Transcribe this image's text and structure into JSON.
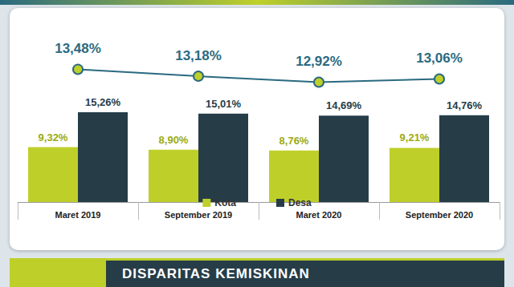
{
  "chart_data": {
    "type": "bar",
    "title": "DISPARITAS KEMISKINAN",
    "categories": [
      "Maret 2019",
      "September 2019",
      "Maret 2020",
      "September 2020"
    ],
    "series": [
      {
        "name": "Kota",
        "type": "bar",
        "color": "#bfcf2a",
        "values": [
          9.32,
          8.9,
          8.76,
          9.21
        ],
        "value_labels": [
          "9,32%",
          "8,90%",
          "8,76%",
          "9,21%"
        ]
      },
      {
        "name": "Desa",
        "type": "bar",
        "color": "#263d48",
        "values": [
          15.26,
          15.01,
          14.69,
          14.76
        ],
        "value_labels": [
          "15,26%",
          "15,01%",
          "14,69%",
          "14,76%"
        ]
      },
      {
        "type": "line",
        "axis": "y2",
        "color": "#2a6a80",
        "marker": "circle",
        "values": [
          13.48,
          13.18,
          12.92,
          13.06
        ],
        "value_labels": [
          "13,48%",
          "13,18%",
          "12,92%",
          "13,06%"
        ]
      }
    ],
    "ylim": [
      0,
      31.6
    ],
    "y2lim": [
      7.7,
      15.8
    ],
    "data_labels": true,
    "tick_labels": "x",
    "grid": false,
    "legend": "bottom"
  }
}
